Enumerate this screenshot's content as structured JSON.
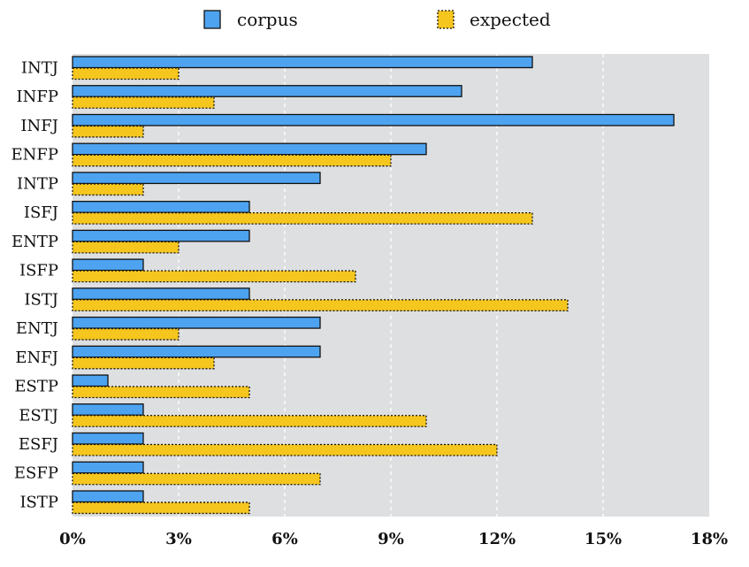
{
  "chart_data": {
    "type": "bar",
    "orientation": "horizontal",
    "categories": [
      "INTJ",
      "INFP",
      "INFJ",
      "ENFP",
      "INTP",
      "ISFJ",
      "ENTP",
      "ISFP",
      "ISTJ",
      "ENTJ",
      "ENFJ",
      "ESTP",
      "ESTJ",
      "ESFJ",
      "ESFP",
      "ISTP"
    ],
    "series": [
      {
        "name": "corpus",
        "color": "#4da3f0",
        "values": [
          13,
          11,
          17,
          10,
          7,
          5,
          5,
          2,
          5,
          7,
          7,
          1,
          2,
          2,
          2,
          2
        ]
      },
      {
        "name": "expected",
        "color": "#f5c61e",
        "values": [
          3,
          4,
          2,
          9,
          2,
          13,
          3,
          8,
          14,
          3,
          4,
          5,
          10,
          12,
          7,
          5
        ]
      }
    ],
    "xlim": [
      0,
      18
    ],
    "xticks": [
      0,
      3,
      6,
      9,
      12,
      15,
      18
    ],
    "xtick_labels": [
      "0%",
      "3%",
      "6%",
      "9%",
      "12%",
      "15%",
      "18%"
    ],
    "grid": "vertical-dashed",
    "legend_position": "top-center",
    "plot_background": "#dedfe1"
  }
}
